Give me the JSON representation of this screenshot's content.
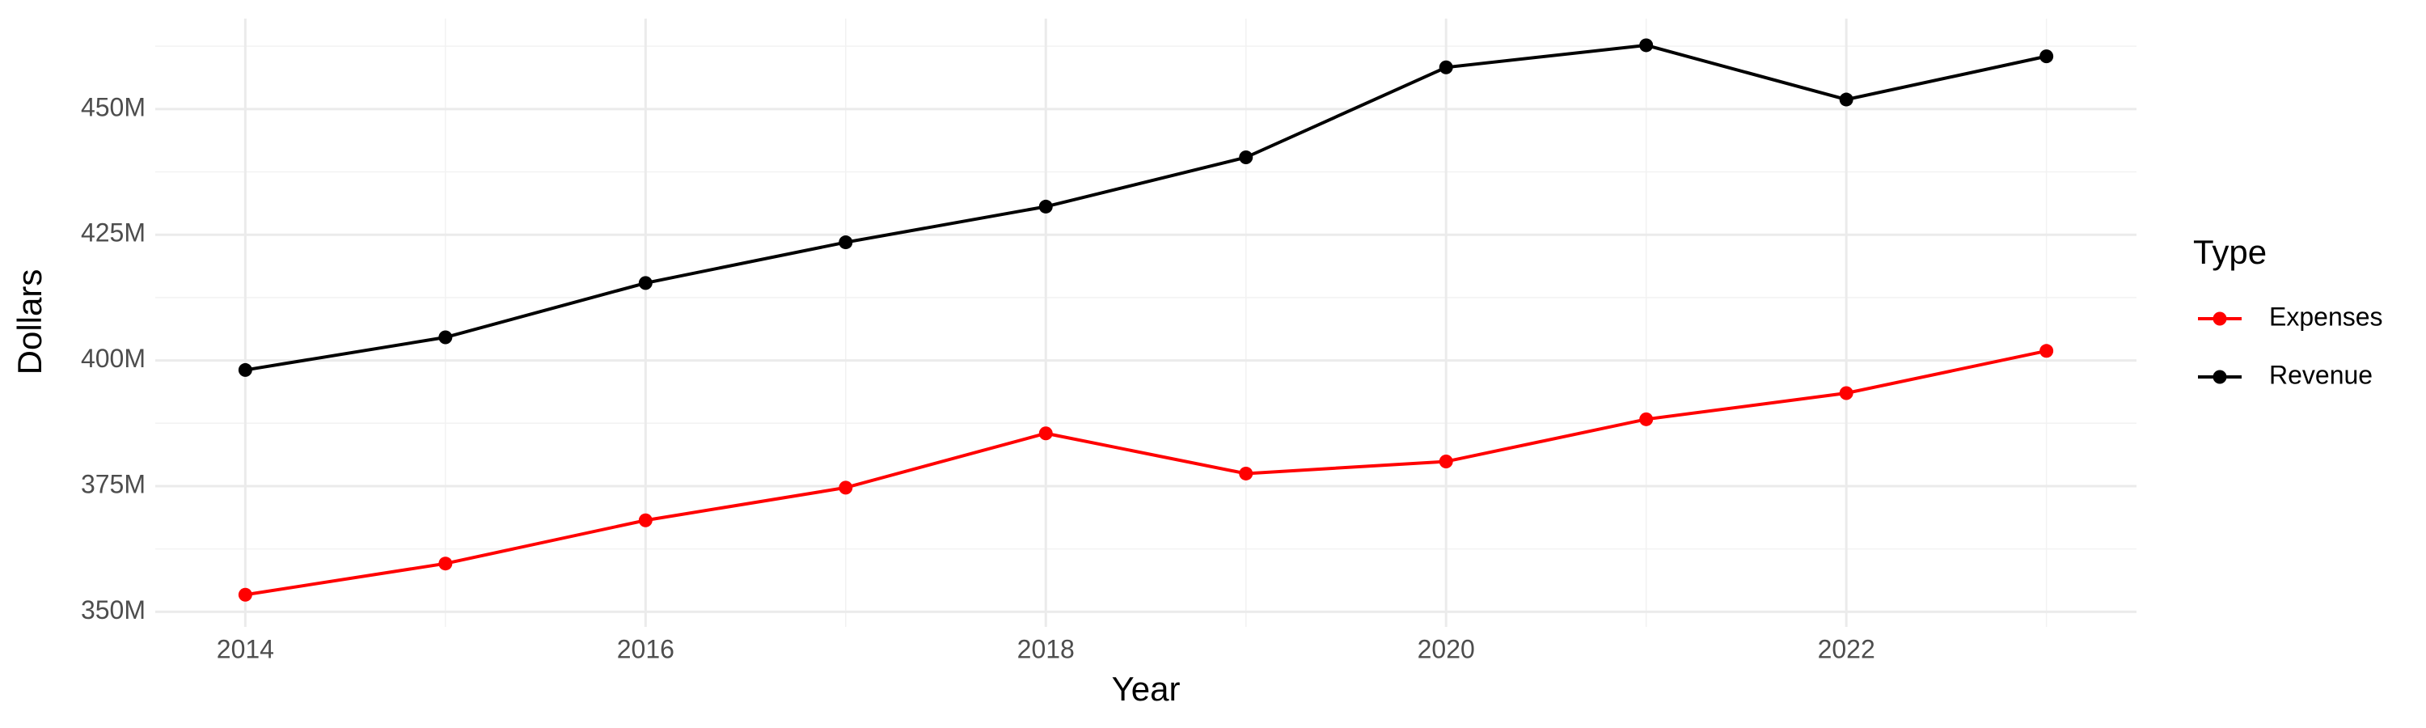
{
  "chart_data": {
    "type": "line",
    "x_label": "Year",
    "y_label": "Dollars",
    "legend_title": "Type",
    "x": [
      2014,
      2015,
      2016,
      2017,
      2018,
      2019,
      2020,
      2021,
      2022,
      2023
    ],
    "series": [
      {
        "name": "Expenses",
        "color": "#ff0000",
        "values": [
          353400000,
          359600000,
          368200000,
          374700000,
          385500000,
          377500000,
          379900000,
          388300000,
          393500000,
          401900000
        ]
      },
      {
        "name": "Revenue",
        "color": "#000000",
        "values": [
          398100000,
          404600000,
          415400000,
          423500000,
          430600000,
          440400000,
          458300000,
          462700000,
          451900000,
          460500000
        ]
      }
    ],
    "xlim": [
      2013.55,
      2023.45
    ],
    "xticks": [
      2014,
      2016,
      2018,
      2020,
      2022
    ],
    "ylim": [
      347000000,
      468000000
    ],
    "yticks": [
      {
        "value": 350000000,
        "label": "350M"
      },
      {
        "value": 375000000,
        "label": "375M"
      },
      {
        "value": 400000000,
        "label": "400M"
      },
      {
        "value": 425000000,
        "label": "425M"
      },
      {
        "value": 450000000,
        "label": "450M"
      }
    ],
    "grid": true,
    "legend_position": "right"
  }
}
